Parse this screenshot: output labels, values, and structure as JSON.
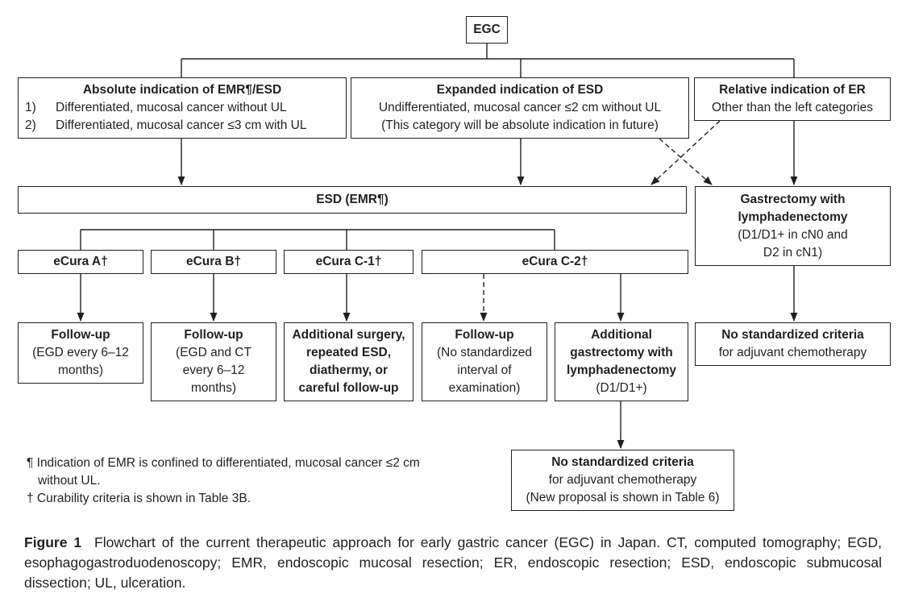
{
  "egc": "EGC",
  "absolute": {
    "title": "Absolute indication of EMR¶/ESD",
    "items": [
      {
        "num": "1)",
        "text": "Differentiated, mucosal cancer without UL"
      },
      {
        "num": "2)",
        "text": "Differentiated, mucosal cancer ≤3 cm with UL"
      }
    ]
  },
  "expanded": {
    "title": "Expanded indication of ESD",
    "line1": "Undifferentiated, mucosal cancer ≤2 cm without UL",
    "line2": "(This category will be absolute indication in future)"
  },
  "relative": {
    "title": "Relative indication of ER",
    "line1": "Other than the left categories"
  },
  "esd": "ESD (EMR¶)",
  "gastrectomy": {
    "title1": "Gastrectomy with",
    "title2": "lymphadenectomy",
    "line1": "(D1/D1+ in cN0 and",
    "line2": "D2 in cN1)"
  },
  "ecura": [
    "eCura A†",
    "eCura B†",
    "eCura C-1†",
    "eCura C-2†"
  ],
  "outcomes": {
    "a": {
      "title": "Follow-up",
      "l1": "(EGD every 6–12",
      "l2": "months)"
    },
    "b": {
      "title": "Follow-up",
      "l1": "(EGD and CT",
      "l2": "every 6–12",
      "l3": "months)"
    },
    "c1": {
      "l1": "Additional surgery,",
      "l2": "repeated ESD,",
      "l3": "diathermy, or",
      "l4": "careful follow-up"
    },
    "c2f": {
      "title": "Follow-up",
      "l1": "(No standardized",
      "l2": "interval of",
      "l3": "examination)"
    },
    "c2g": {
      "t1": "Additional",
      "t2": "gastrectomy with",
      "t3": "lymphadenectomy",
      "l1": "(D1/D1+)"
    },
    "nostd_right": {
      "title": "No standardized criteria",
      "l1": "for adjuvant chemotherapy"
    },
    "nostd_bottom": {
      "title": "No standardized criteria",
      "l1": "for adjuvant chemotherapy",
      "l2": "(New proposal is shown in Table 6)"
    }
  },
  "footnotes": {
    "f1": "¶ Indication of EMR is confined to differentiated, mucosal cancer ≤2 cm",
    "f1b": "without UL.",
    "f2": "† Curability criteria is shown in Table 3B."
  },
  "caption": {
    "label": "Figure 1",
    "text": "Flowchart of the current therapeutic approach for early gastric cancer (EGC) in Japan. CT, computed tomography; EGD, esophagogastroduodenoscopy; EMR, endoscopic mucosal resection; ER, endoscopic resection; ESD, endoscopic submucosal dissection; UL, ulceration."
  }
}
